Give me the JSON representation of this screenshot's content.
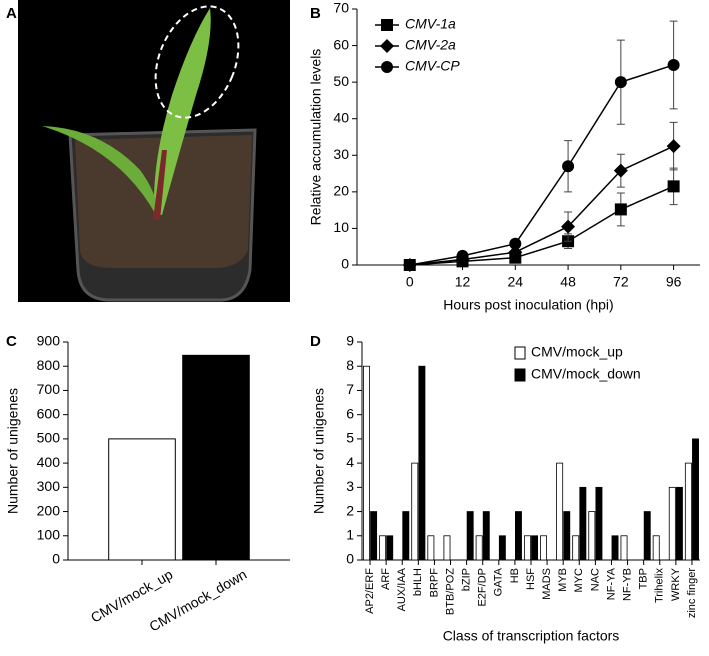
{
  "photo": {
    "panel": "A"
  },
  "chart_data": [
    {
      "type": "line",
      "panel": "B",
      "xlabel": "Hours post inoculation (hpi)",
      "ylabel": "Relative accumulation  levels",
      "categories": [
        "0",
        "12",
        "24",
        "48",
        "72",
        "96"
      ],
      "series": [
        {
          "name": "CMV-1a",
          "color": "#000000",
          "marker": "square",
          "values": [
            0,
            1,
            2,
            6.5,
            15.2,
            21.5
          ],
          "errors": [
            0,
            0.3,
            0.5,
            2,
            4.5,
            5
          ]
        },
        {
          "name": "CMV-2a",
          "color": "#000000",
          "marker": "diamond",
          "values": [
            0,
            1.5,
            3.5,
            10.5,
            25.8,
            32.5
          ],
          "errors": [
            0,
            0.5,
            0.5,
            4,
            4.5,
            6.5
          ]
        },
        {
          "name": "CMV-CP",
          "color": "#000000",
          "marker": "circle",
          "values": [
            0,
            2.5,
            5.8,
            27,
            50,
            54.7
          ],
          "errors": [
            0,
            0.5,
            1,
            7,
            11.5,
            12
          ]
        }
      ],
      "ylim": [
        0,
        70
      ],
      "yticks": [
        0,
        10,
        20,
        30,
        40,
        50,
        60,
        70
      ],
      "legend": "top-left"
    },
    {
      "type": "bar",
      "panel": "C",
      "ylabel": "Number of unigenes",
      "categories": [
        "CMV/mock_up",
        "CMV/mock_down"
      ],
      "values": [
        500,
        845
      ],
      "colors": [
        "#ffffff",
        "#000000"
      ],
      "ylim": [
        0,
        900
      ],
      "yticks": [
        0,
        100,
        200,
        300,
        400,
        500,
        600,
        700,
        800,
        900
      ]
    },
    {
      "type": "bar",
      "panel": "D",
      "ylabel": "Number of unigenes",
      "xlabel": "Class of transcription factors",
      "categories": [
        "AP2/ERF",
        "ARF",
        "AUX/IAA",
        "bHLH",
        "BRPF",
        "BTB/POZ",
        "bZIP",
        "E2F/DP",
        "GATA",
        "HB",
        "HSF",
        "MADS",
        "MYB",
        "MYC",
        "NAC",
        "NF-YA",
        "NF-YB",
        "TBP",
        "Trihelix",
        "WRKY",
        "zinc finger"
      ],
      "series": [
        {
          "name": "CMV/mock_up",
          "color": "#ffffff",
          "values": [
            8,
            1,
            0,
            4,
            1,
            1,
            0,
            1,
            0,
            0,
            1,
            1,
            4,
            1,
            2,
            0,
            1,
            0,
            1,
            3,
            4
          ]
        },
        {
          "name": "CMV/mock_down",
          "color": "#000000",
          "values": [
            2,
            1,
            2,
            8,
            0,
            0,
            2,
            2,
            1,
            2,
            1,
            0,
            2,
            3,
            3,
            1,
            0,
            2,
            0,
            3,
            5
          ]
        }
      ],
      "ylim": [
        0,
        9
      ],
      "yticks": [
        0,
        1,
        2,
        3,
        4,
        5,
        6,
        7,
        8,
        9
      ],
      "legend": "top-right"
    }
  ]
}
